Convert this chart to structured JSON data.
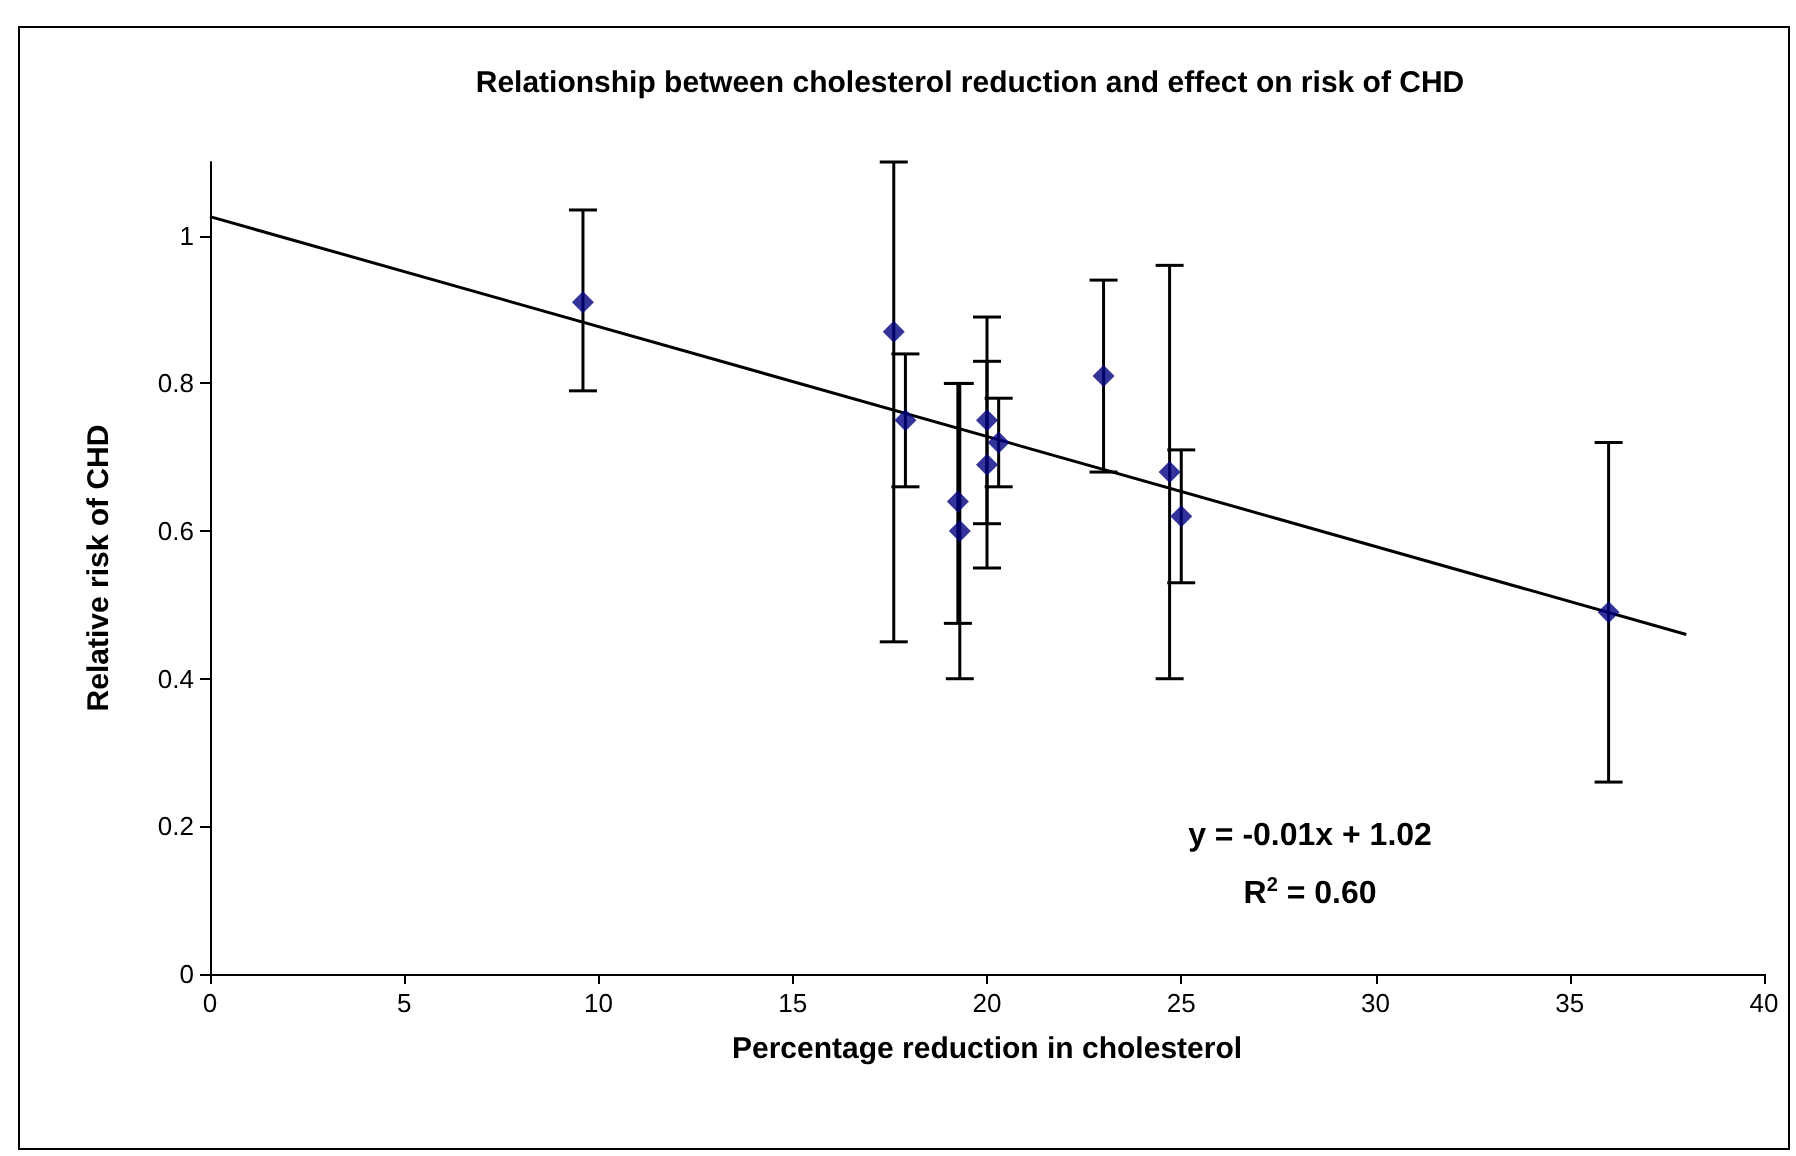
{
  "chart_data": {
    "type": "scatter",
    "title": "Relationship between cholesterol reduction and effect on risk of CHD",
    "xlabel": "Percentage reduction in cholesterol",
    "ylabel": "Relative risk of CHD",
    "xlim": [
      0,
      40
    ],
    "xticks": [
      0,
      5,
      10,
      15,
      20,
      25,
      30,
      35,
      40
    ],
    "ylim": [
      0,
      1.1
    ],
    "yticks": [
      0,
      0.2,
      0.4,
      0.6,
      0.8,
      1
    ],
    "grid": false,
    "marker": "diamond",
    "annotations": [
      "y = -0.01x + 1.02",
      "R$^{2}$ = 0.60"
    ],
    "series": [
      {
        "color": "#000080",
        "x": [
          9.6,
          17.6,
          17.9,
          19.25,
          19.3,
          20.0,
          20.0,
          20.3,
          23.0,
          24.7,
          25.0,
          36.0
        ],
        "values": [
          0.91,
          0.87,
          0.75,
          0.64,
          0.6,
          0.75,
          0.69,
          0.72,
          0.81,
          0.68,
          0.62,
          0.49
        ],
        "errors": [
          [
            0.79,
            1.035
          ],
          [
            0.45,
            1.1
          ],
          [
            0.66,
            0.84
          ],
          [
            0.475,
            0.8
          ],
          [
            0.4,
            0.8
          ],
          [
            0.61,
            0.89
          ],
          [
            0.55,
            0.83
          ],
          [
            0.66,
            0.78
          ],
          [
            0.68,
            0.94
          ],
          [
            0.4,
            0.96
          ],
          [
            0.53,
            0.71
          ],
          [
            0.26,
            0.72
          ]
        ]
      },
      {
        "type": "line",
        "color": "#000000",
        "marker": "none",
        "x": [
          0,
          38
        ],
        "values": [
          1.026,
          0.46
        ]
      }
    ]
  }
}
